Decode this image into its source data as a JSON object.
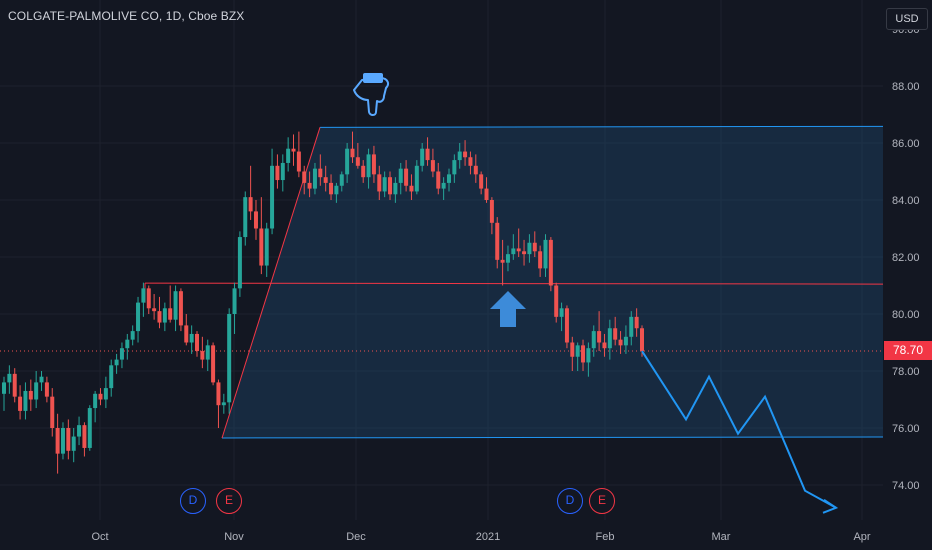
{
  "header": {
    "symbol_title": "COLGATE-PALMOLIVE CO, 1D, Cboe BZX",
    "currency": "USD"
  },
  "price_tag": "78.70",
  "events": [
    {
      "label": "D",
      "kind": "dividend",
      "month": "Oct"
    },
    {
      "label": "E",
      "kind": "earnings",
      "month": "Oct"
    },
    {
      "label": "D",
      "kind": "dividend",
      "month": "Jan"
    },
    {
      "label": "E",
      "kind": "earnings",
      "month": "Jan"
    }
  ],
  "colors": {
    "background": "#131722",
    "up": "#26a69a",
    "down": "#ef5350",
    "channel_line": "#2196f3",
    "channel_fill": "#1f4e79",
    "midline": "#f23645",
    "price_tag": "#f23645",
    "projection": "#2196f3"
  },
  "chart_data": {
    "type": "candlestick",
    "title": "COLGATE-PALMOLIVE CO, 1D, Cboe BZX",
    "y_axis_ticks": [
      "74.00",
      "76.00",
      "78.00",
      "80.00",
      "82.00",
      "84.00",
      "86.00",
      "88.00"
    ],
    "y_axis_partial_top_tick": "90.00",
    "ylim": [
      72.6,
      90.4
    ],
    "x_axis_ticks": [
      "Oct",
      "Nov",
      "Dec",
      "2021",
      "Feb",
      "Mar",
      "Apr"
    ],
    "last_price": 78.7,
    "candles": [
      [
        77.2,
        77.8,
        76.6,
        77.6
      ],
      [
        77.6,
        78.2,
        77.2,
        77.9
      ],
      [
        77.9,
        78.1,
        76.9,
        77.1
      ],
      [
        77.1,
        77.5,
        76.3,
        76.6
      ],
      [
        76.6,
        77.6,
        76.3,
        77.3
      ],
      [
        77.3,
        77.7,
        76.6,
        77.0
      ],
      [
        77.0,
        78.0,
        76.7,
        77.6
      ],
      [
        77.6,
        78.0,
        77.3,
        77.8
      ],
      [
        77.6,
        77.8,
        76.9,
        77.1
      ],
      [
        77.1,
        77.4,
        75.7,
        76.0
      ],
      [
        76.0,
        76.5,
        74.4,
        75.1
      ],
      [
        75.1,
        76.2,
        74.9,
        76.0
      ],
      [
        76.0,
        76.3,
        74.9,
        75.2
      ],
      [
        75.2,
        76.0,
        74.8,
        75.7
      ],
      [
        75.7,
        76.4,
        75.4,
        76.1
      ],
      [
        76.1,
        76.2,
        75.0,
        75.3
      ],
      [
        75.3,
        76.8,
        75.2,
        76.7
      ],
      [
        76.7,
        77.3,
        76.2,
        77.2
      ],
      [
        77.2,
        77.4,
        76.8,
        77.0
      ],
      [
        77.0,
        77.8,
        76.7,
        77.4
      ],
      [
        77.4,
        78.4,
        77.1,
        78.2
      ],
      [
        78.2,
        78.6,
        77.9,
        78.4
      ],
      [
        78.4,
        79.0,
        78.1,
        78.8
      ],
      [
        78.8,
        79.3,
        78.4,
        79.1
      ],
      [
        79.1,
        79.6,
        78.9,
        79.4
      ],
      [
        79.4,
        80.6,
        79.0,
        80.4
      ],
      [
        80.4,
        81.1,
        79.9,
        80.9
      ],
      [
        80.9,
        81.0,
        80.0,
        80.2
      ],
      [
        80.2,
        80.7,
        79.8,
        80.1
      ],
      [
        80.1,
        80.6,
        79.5,
        79.7
      ],
      [
        79.7,
        80.4,
        79.4,
        80.2
      ],
      [
        80.2,
        81.0,
        79.7,
        79.8
      ],
      [
        79.8,
        81.0,
        79.4,
        80.8
      ],
      [
        80.8,
        80.9,
        79.4,
        79.6
      ],
      [
        79.6,
        80.0,
        78.9,
        79.0
      ],
      [
        79.0,
        79.6,
        78.6,
        79.3
      ],
      [
        79.3,
        79.4,
        78.5,
        78.7
      ],
      [
        78.7,
        79.2,
        78.1,
        78.4
      ],
      [
        78.4,
        79.1,
        78.0,
        78.9
      ],
      [
        78.9,
        79.0,
        77.5,
        77.6
      ],
      [
        77.6,
        77.7,
        76.0,
        76.8
      ],
      [
        76.8,
        77.2,
        76.5,
        76.9
      ],
      [
        76.9,
        80.2,
        76.5,
        80.0
      ],
      [
        80.0,
        81.1,
        79.3,
        80.9
      ],
      [
        80.9,
        82.9,
        80.6,
        82.7
      ],
      [
        82.7,
        84.3,
        82.4,
        84.1
      ],
      [
        84.1,
        85.2,
        83.3,
        83.6
      ],
      [
        83.6,
        84.0,
        82.6,
        83.0
      ],
      [
        83.0,
        84.1,
        81.4,
        81.7
      ],
      [
        81.7,
        83.2,
        81.3,
        83.0
      ],
      [
        83.0,
        85.8,
        82.8,
        85.2
      ],
      [
        85.2,
        85.6,
        84.4,
        84.7
      ],
      [
        84.7,
        85.6,
        84.3,
        85.3
      ],
      [
        85.3,
        86.2,
        85.0,
        85.8
      ],
      [
        85.8,
        86.3,
        85.2,
        85.7
      ],
      [
        85.7,
        86.4,
        84.8,
        85.0
      ],
      [
        85.0,
        85.2,
        84.2,
        84.6
      ],
      [
        84.6,
        85.0,
        84.1,
        84.4
      ],
      [
        84.4,
        85.3,
        84.2,
        85.1
      ],
      [
        85.1,
        85.6,
        84.5,
        84.8
      ],
      [
        84.8,
        85.2,
        84.3,
        84.6
      ],
      [
        84.6,
        84.9,
        84.0,
        84.2
      ],
      [
        84.2,
        84.6,
        83.9,
        84.5
      ],
      [
        84.5,
        85.0,
        84.3,
        84.9
      ],
      [
        84.9,
        86.0,
        84.6,
        85.8
      ],
      [
        85.8,
        86.4,
        85.3,
        85.5
      ],
      [
        85.5,
        86.0,
        85.1,
        85.2
      ],
      [
        85.2,
        85.4,
        84.6,
        84.8
      ],
      [
        84.8,
        85.8,
        84.4,
        85.6
      ],
      [
        85.6,
        85.9,
        84.6,
        84.9
      ],
      [
        84.9,
        85.2,
        84.0,
        84.3
      ],
      [
        84.3,
        85.0,
        84.1,
        84.8
      ],
      [
        84.8,
        85.0,
        84.0,
        84.2
      ],
      [
        84.2,
        84.8,
        83.9,
        84.6
      ],
      [
        84.6,
        85.3,
        84.2,
        85.1
      ],
      [
        85.1,
        85.4,
        84.3,
        84.5
      ],
      [
        84.5,
        84.9,
        84.0,
        84.3
      ],
      [
        84.3,
        85.4,
        84.2,
        85.2
      ],
      [
        85.2,
        86.0,
        85.0,
        85.8
      ],
      [
        85.8,
        86.2,
        85.2,
        85.4
      ],
      [
        85.4,
        85.8,
        84.8,
        85.0
      ],
      [
        85.0,
        85.3,
        84.2,
        84.4
      ],
      [
        84.4,
        84.8,
        84.0,
        84.6
      ],
      [
        84.6,
        85.1,
        84.3,
        84.9
      ],
      [
        84.9,
        85.6,
        84.6,
        85.4
      ],
      [
        85.4,
        86.0,
        85.1,
        85.7
      ],
      [
        85.7,
        86.1,
        85.2,
        85.5
      ],
      [
        85.5,
        85.7,
        84.9,
        85.2
      ],
      [
        85.2,
        85.6,
        84.6,
        84.9
      ],
      [
        84.9,
        85.0,
        84.2,
        84.4
      ],
      [
        84.4,
        84.8,
        83.9,
        84.0
      ],
      [
        84.0,
        84.1,
        82.8,
        83.2
      ],
      [
        83.2,
        83.4,
        81.6,
        81.9
      ],
      [
        81.9,
        82.6,
        81.0,
        81.8
      ],
      [
        81.8,
        82.4,
        81.5,
        82.1
      ],
      [
        82.1,
        82.8,
        81.9,
        82.3
      ],
      [
        82.3,
        83.0,
        82.0,
        82.2
      ],
      [
        82.2,
        82.6,
        81.7,
        82.1
      ],
      [
        82.1,
        82.8,
        81.8,
        82.5
      ],
      [
        82.5,
        82.9,
        82.0,
        82.2
      ],
      [
        82.2,
        82.4,
        81.3,
        81.6
      ],
      [
        81.6,
        82.8,
        81.3,
        82.6
      ],
      [
        82.6,
        82.7,
        80.8,
        81.0
      ],
      [
        81.0,
        81.1,
        79.7,
        79.9
      ],
      [
        79.9,
        80.4,
        79.4,
        80.2
      ],
      [
        80.2,
        80.3,
        78.8,
        79.0
      ],
      [
        79.0,
        79.2,
        78.0,
        78.5
      ],
      [
        78.5,
        79.0,
        78.0,
        78.9
      ],
      [
        78.9,
        79.1,
        78.0,
        78.3
      ],
      [
        78.3,
        79.0,
        77.8,
        78.8
      ],
      [
        78.8,
        79.6,
        78.5,
        79.4
      ],
      [
        79.4,
        80.1,
        78.7,
        79.0
      ],
      [
        79.0,
        79.3,
        78.5,
        78.8
      ],
      [
        78.8,
        79.8,
        78.4,
        79.5
      ],
      [
        79.5,
        79.9,
        78.9,
        79.1
      ],
      [
        79.1,
        79.4,
        78.6,
        78.9
      ],
      [
        78.9,
        79.6,
        78.6,
        79.2
      ],
      [
        79.2,
        80.1,
        78.9,
        79.9
      ],
      [
        79.9,
        80.2,
        79.2,
        79.5
      ],
      [
        79.5,
        79.6,
        78.5,
        78.7
      ]
    ],
    "drawings": {
      "channel_upper_price": 86.55,
      "channel_lower_price": 75.65,
      "channel_mid_price": 81.05,
      "projection_path_prices": [
        78.7,
        76.3,
        77.8,
        75.8,
        77.1,
        73.8,
        73.2
      ],
      "annotations": [
        "pointing-hand-down-icon",
        "up-arrow-icon"
      ]
    }
  }
}
